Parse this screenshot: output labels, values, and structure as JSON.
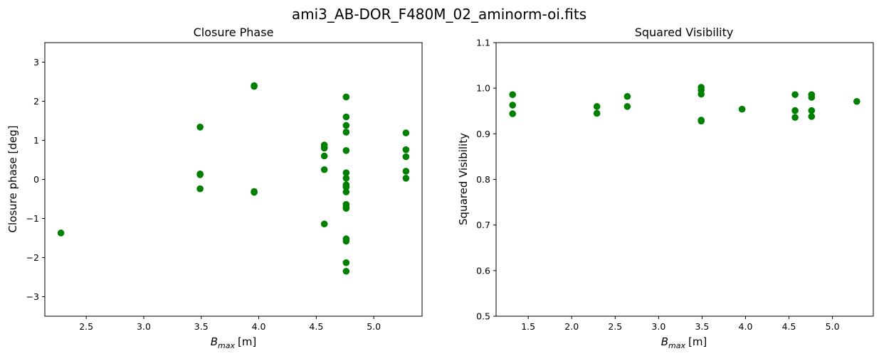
{
  "figure": {
    "suptitle": "ami3_AB-DOR_F480M_02_aminorm-oi.fits",
    "marker_color": "#008000"
  },
  "chart_data": [
    {
      "type": "scatter",
      "title": "Closure Phase",
      "xlabel_main": "B",
      "xlabel_sub": "max",
      "xlabel_unit": "[m]",
      "ylabel": "Closure phase [deg]",
      "xlim": [
        2.14,
        5.42
      ],
      "ylim": [
        -3.5,
        3.5
      ],
      "xticks": [
        2.5,
        3.0,
        3.5,
        4.0,
        4.5,
        5.0
      ],
      "yticks": [
        -3,
        -2,
        -1,
        0,
        1,
        2,
        3
      ],
      "xtick_labels": [
        "2.5",
        "3.0",
        "3.5",
        "4.0",
        "4.5",
        "5.0"
      ],
      "ytick_labels": [
        "−3",
        "−2",
        "−1",
        "0",
        "1",
        "2",
        "3"
      ],
      "grid": false,
      "series": [
        {
          "color": "#008000",
          "x": [
            2.28,
            3.49,
            3.49,
            3.49,
            3.49,
            3.96,
            3.96,
            3.96,
            3.96,
            4.57,
            4.57,
            4.57,
            4.57,
            4.57,
            4.57,
            4.76,
            4.76,
            4.76,
            4.76,
            4.76,
            4.76,
            4.76,
            4.76,
            4.76,
            4.76,
            4.76,
            4.76,
            4.76,
            4.76,
            4.76,
            4.76,
            4.76,
            4.76,
            5.28,
            5.28,
            5.28,
            5.28,
            5.28
          ],
          "y": [
            -1.37,
            1.34,
            0.14,
            0.12,
            -0.24,
            2.4,
            2.38,
            -0.31,
            -0.33,
            0.88,
            0.82,
            0.6,
            0.25,
            -1.14,
            0.8,
            2.11,
            1.6,
            1.38,
            1.21,
            0.74,
            0.17,
            0.03,
            -0.14,
            -0.19,
            -0.32,
            -0.64,
            -0.7,
            -0.74,
            -1.52,
            -1.58,
            -2.13,
            -2.35,
            -0.19,
            1.19,
            0.76,
            0.58,
            0.21,
            0.03
          ]
        }
      ]
    },
    {
      "type": "scatter",
      "title": "Squared Visibility",
      "xlabel_main": "B",
      "xlabel_sub": "max",
      "xlabel_unit": "[m]",
      "ylabel": "Squared Visibility",
      "xlim": [
        1.13,
        5.47
      ],
      "ylim": [
        0.5,
        1.1
      ],
      "xticks": [
        1.5,
        2.0,
        2.5,
        3.0,
        3.5,
        4.0,
        4.5,
        5.0
      ],
      "yticks": [
        0.5,
        0.6,
        0.7,
        0.8,
        0.9,
        1.0,
        1.1
      ],
      "xtick_labels": [
        "1.5",
        "2.0",
        "2.5",
        "3.0",
        "3.5",
        "4.0",
        "4.5",
        "5.0"
      ],
      "ytick_labels": [
        "0.5",
        "0.6",
        "0.7",
        "0.8",
        "0.9",
        "1.0",
        "1.1"
      ],
      "grid": false,
      "series": [
        {
          "color": "#008000",
          "x": [
            1.32,
            1.32,
            1.32,
            2.29,
            2.29,
            2.64,
            2.64,
            3.49,
            3.49,
            3.49,
            3.49,
            3.49,
            3.96,
            4.57,
            4.57,
            4.57,
            4.76,
            4.76,
            4.76,
            4.76,
            5.28
          ],
          "y": [
            0.986,
            0.963,
            0.944,
            0.96,
            0.945,
            0.982,
            0.96,
            1.002,
            0.996,
            0.987,
            0.93,
            0.928,
            0.954,
            0.986,
            0.951,
            0.936,
            0.986,
            0.98,
            0.951,
            0.938,
            0.971
          ]
        }
      ]
    }
  ]
}
